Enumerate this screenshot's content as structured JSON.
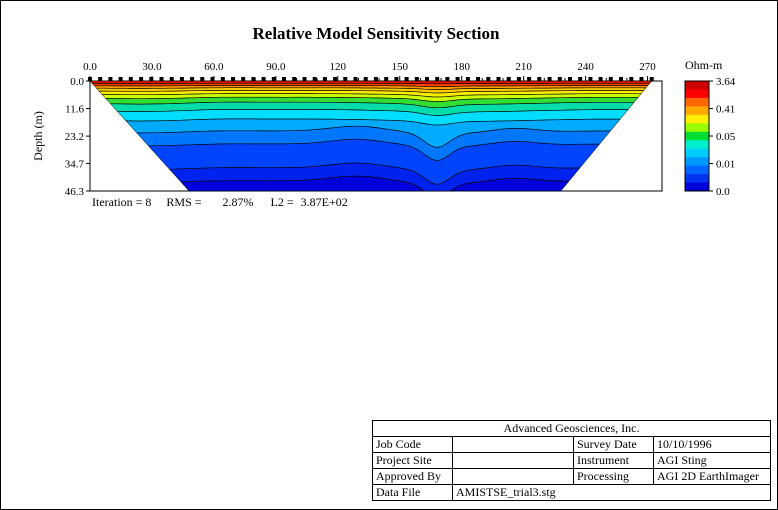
{
  "chart_data": {
    "type": "heatmap",
    "title": "Relative Model Sensitivity Section",
    "xlabel": "",
    "ylabel": "Depth (m)",
    "x_ticks": [
      "0.0",
      "30.0",
      "60.0",
      "90.0",
      "120",
      "150",
      "180",
      "210",
      "240",
      "270"
    ],
    "x_tick_values": [
      0,
      30,
      60,
      90,
      120,
      150,
      180,
      210,
      240,
      270
    ],
    "xlim": [
      0,
      277
    ],
    "y_ticks": [
      "0.0",
      "11.6",
      "23.2",
      "34.7",
      "46.3"
    ],
    "y_tick_values": [
      0,
      11.6,
      23.2,
      34.7,
      46.3
    ],
    "ylim": [
      0,
      46.3
    ],
    "section_trapezoid": {
      "top_x": [
        0,
        272
      ],
      "bottom_x": [
        48,
        228
      ],
      "bottom_depth": 46.3
    },
    "electrode_count": 56,
    "colorbar": {
      "title": "Ohm-m",
      "tick_labels": [
        "3.64",
        "0.41",
        "0.05",
        "0.01",
        "0.0"
      ],
      "colors": [
        "#cc0000",
        "#ff0000",
        "#ff6600",
        "#ffaa00",
        "#ffee00",
        "#99ff00",
        "#00dd33",
        "#00eecc",
        "#00ccff",
        "#0099ff",
        "#0066ff",
        "#0033ee",
        "#0000dd"
      ]
    },
    "layers": [
      {
        "depth": 0.0,
        "color": "#dd1100"
      },
      {
        "depth": 1.0,
        "color": "#ff4400"
      },
      {
        "depth": 2.0,
        "color": "#ff9900"
      },
      {
        "depth": 3.0,
        "color": "#ffcc00"
      },
      {
        "depth": 4.2,
        "color": "#ffee00"
      },
      {
        "depth": 5.6,
        "color": "#ccff00"
      },
      {
        "depth": 7.2,
        "color": "#33dd33"
      },
      {
        "depth": 9.4,
        "color": "#00ddaa"
      },
      {
        "depth": 12.5,
        "color": "#00ddff"
      },
      {
        "depth": 16.5,
        "color": "#00aaff"
      },
      {
        "depth": 21.5,
        "color": "#0077ff"
      },
      {
        "depth": 27.0,
        "color": "#0044ff"
      },
      {
        "depth": 37.0,
        "color": "#0022ee"
      },
      {
        "depth": 42.5,
        "color": "#0000dd"
      }
    ]
  },
  "stats": {
    "iteration_label": "Iteration = 8",
    "rms_label": "RMS =",
    "rms_value": "2.87%",
    "l2_label": "L2 =",
    "l2_value": "3.87E+02"
  },
  "info_block": {
    "company": "Advanced Geosciences, Inc.",
    "job_code_label": "Job Code",
    "job_code_value": "",
    "survey_date_label": "Survey Date",
    "survey_date_value": "10/10/1996",
    "project_site_label": "Project Site",
    "project_site_value": "",
    "instrument_label": "Instrument",
    "instrument_value": "AGI Sting",
    "approved_by_label": "Approved By",
    "approved_by_value": "",
    "processing_label": "Processing",
    "processing_value": "AGI 2D EarthImager",
    "data_file_label": "Data File",
    "data_file_value": "AMISTSE_trial3.stg"
  }
}
